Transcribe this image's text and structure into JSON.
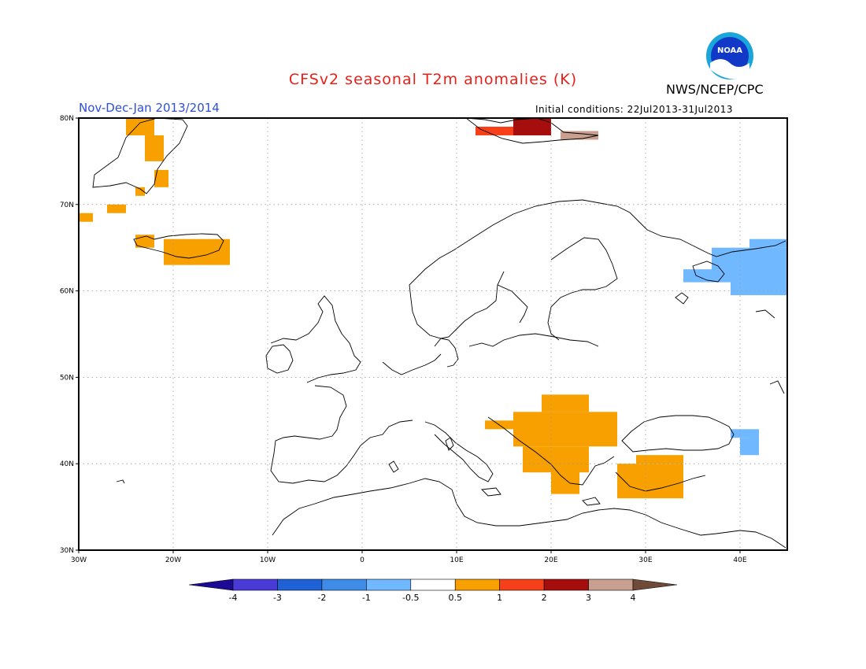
{
  "header": {
    "title": "CFSv2 seasonal T2m anomalies (K)",
    "title_color": "#e8201a",
    "season": "Nov-Dec-Jan 2013/2014",
    "season_color": "#2e4fd8",
    "initial_conditions": "Initial conditions: 22Jul2013-31Jul2013",
    "agency": "NWS/NCEP/CPC",
    "logo_text": "NOAA"
  },
  "map": {
    "lon_range": [
      -30,
      45
    ],
    "lat_range": [
      30,
      80
    ],
    "lon_ticks": [
      {
        "lon": -30,
        "label": "30W"
      },
      {
        "lon": -20,
        "label": "20W"
      },
      {
        "lon": -10,
        "label": "10W"
      },
      {
        "lon": 0,
        "label": "0"
      },
      {
        "lon": 10,
        "label": "10E"
      },
      {
        "lon": 20,
        "label": "20E"
      },
      {
        "lon": 30,
        "label": "30E"
      },
      {
        "lon": 40,
        "label": "40E"
      }
    ],
    "lat_ticks": [
      {
        "lat": 80,
        "label": "80N"
      },
      {
        "lat": 70,
        "label": "70N"
      },
      {
        "lat": 60,
        "label": "60N"
      },
      {
        "lat": 50,
        "label": "50N"
      },
      {
        "lat": 40,
        "label": "40N"
      },
      {
        "lat": 30,
        "label": "30N"
      }
    ],
    "grid": true,
    "anomaly_regions": [
      {
        "name": "greenland-east",
        "bin": "0.5 to 1",
        "color": "#f7a000",
        "cells": [
          [
            -25,
            78,
            3,
            2
          ],
          [
            -23,
            75,
            2,
            3
          ],
          [
            -22,
            72,
            1.5,
            2
          ],
          [
            -24,
            71,
            1,
            1
          ]
        ]
      },
      {
        "name": "greenland-southeast",
        "bin": "0.5 to 1",
        "color": "#f7a000",
        "cells": [
          [
            -30,
            68,
            1.5,
            1
          ],
          [
            -27,
            69,
            2,
            1
          ]
        ]
      },
      {
        "name": "iceland",
        "bin": "0.5 to 1",
        "color": "#f7a000",
        "cells": [
          [
            -24,
            65,
            2,
            1.5
          ],
          [
            -21,
            63,
            7,
            3
          ]
        ]
      },
      {
        "name": "svalbard-west",
        "bin": "1 to 2",
        "color": "#f7401a",
        "cells": [
          [
            12,
            78,
            4,
            1
          ]
        ]
      },
      {
        "name": "svalbard-center",
        "bin": "2 to 3",
        "color": "#a60e0e",
        "cells": [
          [
            16,
            78,
            4,
            2
          ]
        ]
      },
      {
        "name": "svalbard-east",
        "bin": "3 to 4",
        "color": "#c9a08f",
        "cells": [
          [
            21,
            77.5,
            4,
            1
          ]
        ]
      },
      {
        "name": "balkans",
        "bin": "0.5 to 1",
        "color": "#f7a000",
        "cells": [
          [
            16,
            42,
            11,
            4
          ],
          [
            19,
            46,
            5,
            2
          ],
          [
            13,
            44,
            4,
            1
          ],
          [
            17,
            39,
            7,
            3
          ],
          [
            20,
            36.5,
            3,
            3
          ]
        ]
      },
      {
        "name": "anatolia",
        "bin": "0.5 to 1",
        "color": "#f7a000",
        "cells": [
          [
            27,
            36,
            7,
            4
          ],
          [
            29,
            40,
            5,
            1
          ],
          [
            31,
            37,
            1,
            1
          ]
        ]
      },
      {
        "name": "northwest-russia",
        "bin": "-1 to -0.5",
        "color": "#70b8ff",
        "cells": [
          [
            37,
            61,
            8,
            4
          ],
          [
            39,
            59.5,
            6,
            2
          ],
          [
            41,
            65,
            4,
            1
          ],
          [
            34,
            61,
            3,
            1.5
          ]
        ]
      },
      {
        "name": "caucasus",
        "bin": "-1 to -0.5",
        "color": "#70b8ff",
        "cells": [
          [
            39,
            43,
            2,
            1
          ],
          [
            40,
            41,
            2,
            2
          ],
          [
            41,
            42,
            1,
            2
          ]
        ]
      }
    ]
  },
  "colorbar": {
    "bins": [
      {
        "color": "#1c0a94"
      },
      {
        "color": "#4a3bd6"
      },
      {
        "color": "#1f62d6"
      },
      {
        "color": "#3e8ce8"
      },
      {
        "color": "#70b8ff"
      },
      {
        "color": "#ffffff"
      },
      {
        "color": "#f7a000"
      },
      {
        "color": "#f7401a"
      },
      {
        "color": "#a60e0e"
      },
      {
        "color": "#c9a08f"
      },
      {
        "color": "#704a39"
      }
    ],
    "tick_labels": [
      "-4",
      "-3",
      "-2",
      "-1",
      "-0.5",
      "0.5",
      "1",
      "2",
      "3",
      "4"
    ]
  }
}
